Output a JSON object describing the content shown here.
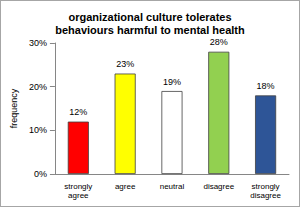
{
  "chart_data": {
    "type": "bar",
    "title": "organizational culture tolerates\nbehaviours harmful to mental health",
    "y_label": "frequency",
    "categories": [
      "strongly\nagree",
      "agree",
      "neutral",
      "disagree",
      "strongly\ndisagree"
    ],
    "values": [
      12,
      23,
      19,
      28,
      18
    ],
    "value_labels": [
      "12%",
      "23%",
      "19%",
      "28%",
      "18%"
    ],
    "colors": [
      "#ff0000",
      "#ffff00",
      "#ffffff",
      "#92d050",
      "#2e5597"
    ],
    "ylim": [
      0,
      30
    ],
    "yticks": [
      {
        "value": 0,
        "label": "0%"
      },
      {
        "value": 10,
        "label": "10%"
      },
      {
        "value": 20,
        "label": "20%"
      },
      {
        "value": 30,
        "label": "30%"
      }
    ],
    "grid": false,
    "data_labels": true
  }
}
